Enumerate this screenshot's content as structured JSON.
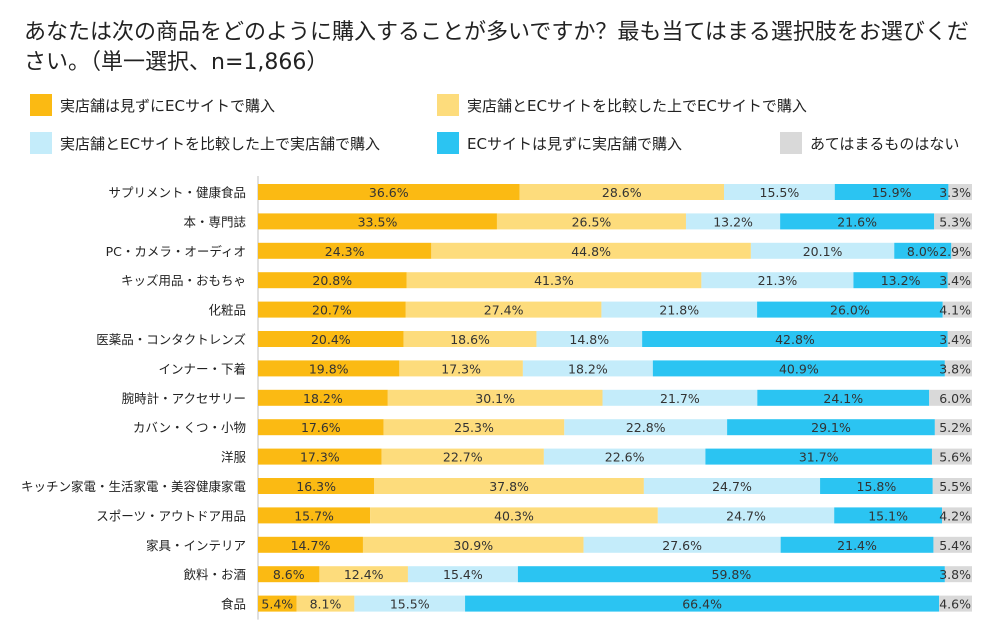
{
  "title": "あなたは次の商品をどのように購入することが多いですか？最も当てはまる選択肢をお選びください。（単一選択、n=1,866）",
  "chart_data": {
    "type": "bar",
    "orientation": "horizontal",
    "stacked": true,
    "unit": "%",
    "legend_position": "top",
    "categories": [
      "サプリメント・健康食品",
      "本・専門誌",
      "PC・カメラ・オーディオ",
      "キッズ用品・おもちゃ",
      "化粧品",
      "医薬品・コンタクトレンズ",
      "インナー・下着",
      "腕時計・アクセサリー",
      "カバン・くつ・小物",
      "洋服",
      "キッチン家電・生活家電・美容健康家電",
      "スポーツ・アウトドア用品",
      "家具・インテリア",
      "飲料・お酒",
      "食品"
    ],
    "series": [
      {
        "name": "実店舗は見ずにECサイトで購入",
        "color": "#FBBA13",
        "values": [
          36.6,
          33.5,
          24.3,
          20.8,
          20.7,
          20.4,
          19.8,
          18.2,
          17.6,
          17.3,
          16.3,
          15.7,
          14.7,
          8.6,
          5.4
        ]
      },
      {
        "name": "実店舗とECサイトを比較した上でECサイトで購入",
        "color": "#FDDC7C",
        "values": [
          28.6,
          26.5,
          44.8,
          41.3,
          27.4,
          18.6,
          17.3,
          30.1,
          25.3,
          22.7,
          37.8,
          40.3,
          30.9,
          12.4,
          8.1
        ]
      },
      {
        "name": "実店舗とECサイトを比較した上で実店舗で購入",
        "color": "#C4ECFA",
        "values": [
          15.5,
          13.2,
          20.1,
          21.3,
          21.8,
          14.8,
          18.2,
          21.7,
          22.8,
          22.6,
          24.7,
          24.7,
          27.6,
          15.4,
          15.5
        ]
      },
      {
        "name": "ECサイトは見ずに実店舗で購入",
        "color": "#2BC4F2",
        "values": [
          15.9,
          21.6,
          8.0,
          13.2,
          26.0,
          42.8,
          40.9,
          24.1,
          29.1,
          31.7,
          15.8,
          15.1,
          21.4,
          59.8,
          66.4
        ]
      },
      {
        "name": "あてはまるものはない",
        "color": "#D9D9D9",
        "values": [
          3.3,
          5.3,
          2.9,
          3.4,
          4.1,
          3.4,
          3.8,
          6.0,
          5.2,
          5.6,
          5.5,
          4.2,
          5.4,
          3.8,
          4.6
        ]
      }
    ]
  }
}
